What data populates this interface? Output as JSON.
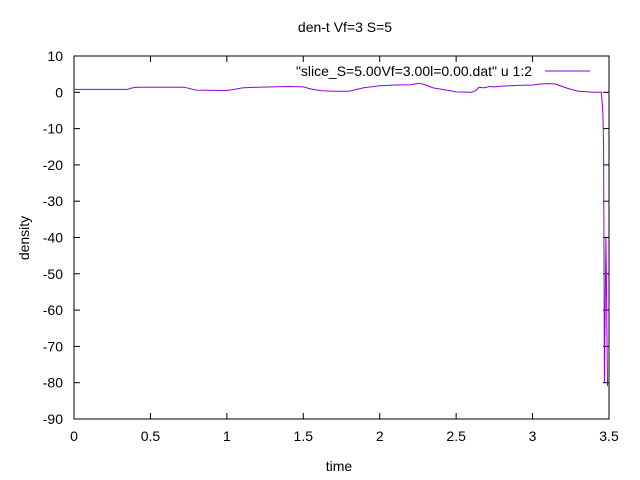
{
  "chart_data": {
    "type": "line",
    "title": "den-t Vf=3 S=5",
    "xlabel": "time",
    "ylabel": "density",
    "xlim": [
      0,
      3.5
    ],
    "ylim": [
      -90,
      10
    ],
    "xticks": [
      0,
      0.5,
      1,
      1.5,
      2,
      2.5,
      3,
      3.5
    ],
    "xtick_labels": [
      "0",
      "0.5",
      "1",
      "1.5",
      "2",
      "2.5",
      "3",
      "3.5"
    ],
    "yticks": [
      10,
      0,
      -10,
      -20,
      -30,
      -40,
      -50,
      -60,
      -70,
      -80,
      -90
    ],
    "ytick_labels": [
      "10",
      "0",
      "-10",
      "-20",
      "-30",
      "-40",
      "-50",
      "-60",
      "-70",
      "-80",
      "-90"
    ],
    "grid": false,
    "legend_position": "top-right",
    "series": [
      {
        "name": "\"slice_S=5.00Vf=3.00l=0.00.dat\" u 1:2",
        "color": "#9400d3",
        "x": [
          0,
          0.35,
          0.38,
          0.42,
          0.6,
          0.72,
          0.76,
          0.8,
          1.0,
          1.05,
          1.1,
          1.2,
          1.4,
          1.5,
          1.55,
          1.62,
          1.7,
          1.8,
          1.85,
          1.9,
          2.0,
          2.1,
          2.2,
          2.26,
          2.3,
          2.35,
          2.45,
          2.5,
          2.6,
          2.63,
          2.65,
          2.68,
          2.72,
          2.75,
          2.8,
          2.9,
          3.0,
          3.05,
          3.1,
          3.15,
          3.2,
          3.25,
          3.3,
          3.4,
          3.45,
          3.46,
          3.465,
          3.47,
          3.48,
          3.485,
          3.49
        ],
        "y": [
          0.8,
          0.8,
          1.2,
          1.4,
          1.4,
          1.4,
          1.0,
          0.6,
          0.5,
          0.8,
          1.2,
          1.4,
          1.6,
          1.5,
          0.9,
          0.4,
          0.3,
          0.3,
          0.8,
          1.3,
          1.8,
          2.0,
          2.1,
          2.5,
          2.0,
          1.2,
          0.5,
          0.1,
          0.0,
          0.5,
          1.4,
          1.2,
          1.6,
          1.5,
          1.7,
          1.9,
          2.0,
          2.3,
          2.4,
          2.3,
          1.5,
          0.8,
          0.3,
          0.0,
          0.0,
          -6,
          -15,
          -80,
          -40,
          -60,
          -81
        ]
      }
    ]
  }
}
